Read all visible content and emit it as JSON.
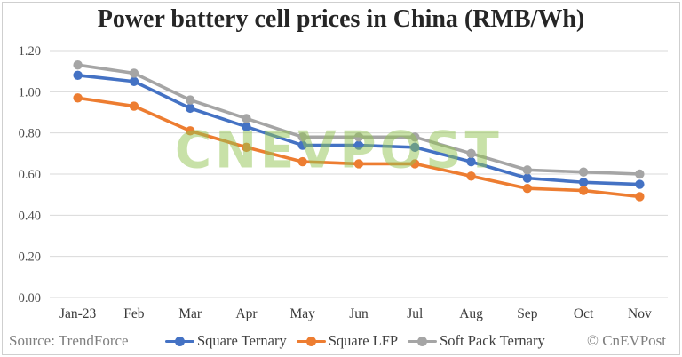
{
  "title": "Power battery cell prices in China (RMB/Wh)",
  "watermark": "CNEVPOST",
  "footer": {
    "source": "Source: TrendForce",
    "copyright": "© CnEVPost"
  },
  "chart_data": {
    "type": "line",
    "title": "Power battery cell prices in China (RMB/Wh)",
    "categories": [
      "Jan-23",
      "Feb",
      "Mar",
      "Apr",
      "May",
      "Jun",
      "Jul",
      "Aug",
      "Sep",
      "Oct",
      "Nov"
    ],
    "series": [
      {
        "name": "Square Ternary",
        "color": "#4472C4",
        "values": [
          1.08,
          1.05,
          0.92,
          0.83,
          0.74,
          0.74,
          0.73,
          0.66,
          0.58,
          0.56,
          0.55
        ]
      },
      {
        "name": "Square LFP",
        "color": "#ED7D31",
        "values": [
          0.97,
          0.93,
          0.81,
          0.73,
          0.66,
          0.65,
          0.65,
          0.59,
          0.53,
          0.52,
          0.49
        ]
      },
      {
        "name": "Soft Pack Ternary",
        "color": "#A5A5A5",
        "values": [
          1.13,
          1.09,
          0.96,
          0.87,
          0.78,
          0.78,
          0.78,
          0.7,
          0.62,
          0.61,
          0.6
        ]
      }
    ],
    "xlabel": "",
    "ylabel": "",
    "ylim": [
      0,
      1.2
    ],
    "y_ticks": [
      "0.00",
      "0.20",
      "0.40",
      "0.60",
      "0.80",
      "1.00",
      "1.20"
    ],
    "grid": true,
    "legend_position": "bottom",
    "gridline_color": "#d9d9d9",
    "tick_label_color": "#4d4d4d",
    "x_label_color": "#3b3b3b"
  }
}
